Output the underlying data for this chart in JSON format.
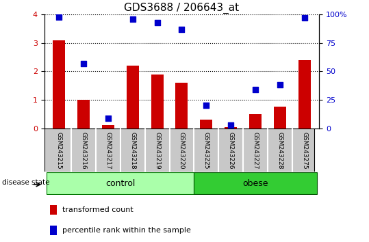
{
  "title": "GDS3688 / 206643_at",
  "samples": [
    "GSM243215",
    "GSM243216",
    "GSM243217",
    "GSM243218",
    "GSM243219",
    "GSM243220",
    "GSM243225",
    "GSM243226",
    "GSM243227",
    "GSM243228",
    "GSM243275"
  ],
  "transformed_count": [
    3.1,
    1.0,
    0.1,
    2.2,
    1.9,
    1.6,
    0.3,
    0.05,
    0.5,
    0.75,
    2.4
  ],
  "percentile_rank": [
    98,
    57,
    9,
    96,
    93,
    87,
    20,
    3,
    34,
    38,
    97
  ],
  "groups": [
    {
      "name": "control",
      "n_samples": 6
    },
    {
      "name": "obese",
      "n_samples": 5
    }
  ],
  "ylim_left": [
    0,
    4
  ],
  "ylim_right": [
    0,
    100
  ],
  "yticks_left": [
    0,
    1,
    2,
    3,
    4
  ],
  "yticks_right": [
    0,
    25,
    50,
    75,
    100
  ],
  "bar_color": "#CC0000",
  "dot_color": "#0000CC",
  "background_color": "#FFFFFF",
  "sample_box_color": "#C8C8C8",
  "control_color": "#AAFFAA",
  "obese_color": "#33CC33",
  "bar_width": 0.5,
  "dot_size": 40
}
